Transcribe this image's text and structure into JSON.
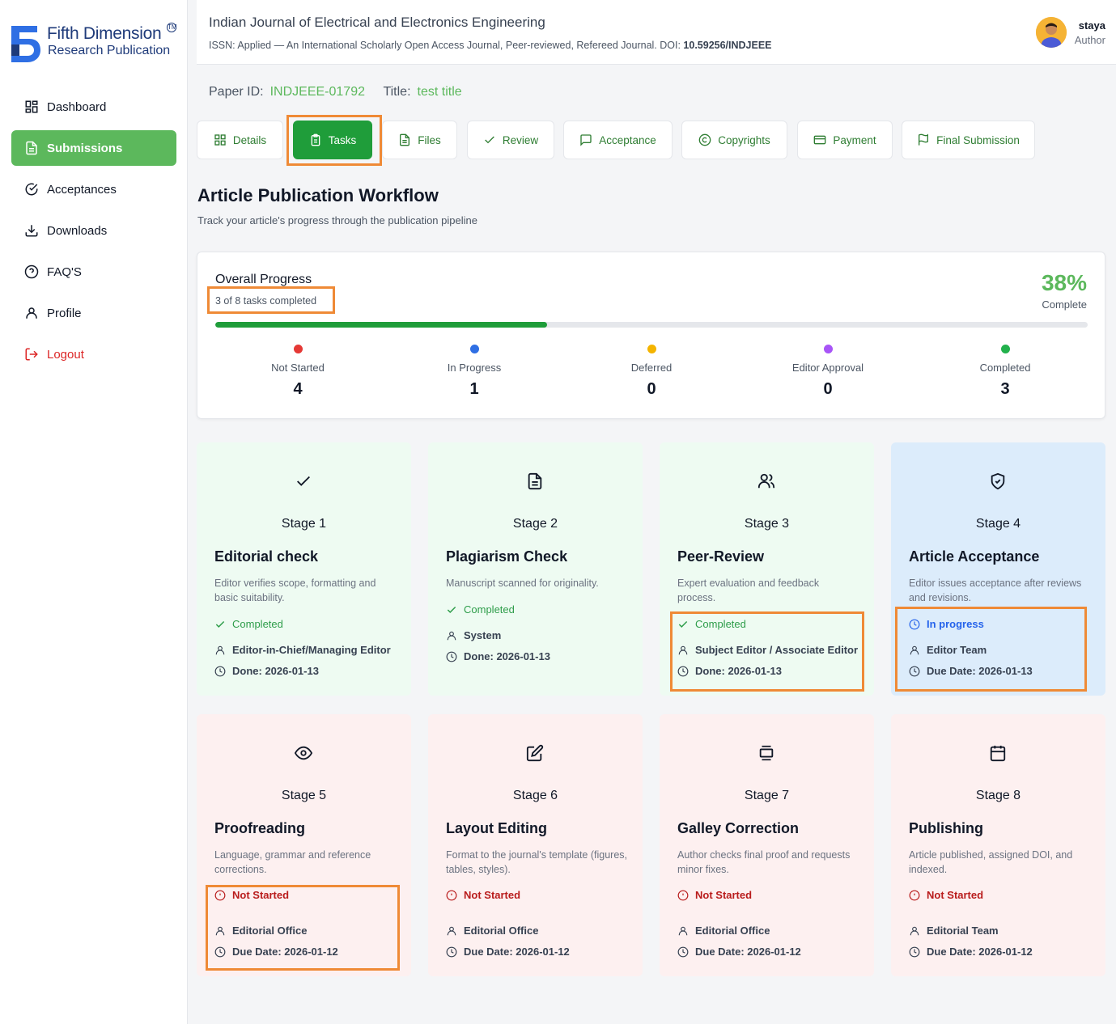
{
  "brand": {
    "line1": "Fifth Dimension",
    "line2": "Research Publication",
    "tm": "TM"
  },
  "nav": [
    {
      "label": "Dashboard",
      "icon": "grid-icon"
    },
    {
      "label": "Submissions",
      "icon": "document-icon",
      "active": true
    },
    {
      "label": "Acceptances",
      "icon": "check-circle-icon"
    },
    {
      "label": "Downloads",
      "icon": "download-icon"
    },
    {
      "label": "FAQ'S",
      "icon": "help-circle-icon"
    },
    {
      "label": "Profile",
      "icon": "user-icon"
    },
    {
      "label": "Logout",
      "icon": "logout-icon"
    }
  ],
  "header": {
    "title": "Indian Journal of Electrical and Electronics Engineering",
    "subtitle": "ISSN: Applied — An International Scholarly Open Access Journal, Peer-reviewed, Refereed Journal. DOI: ",
    "doi": "10.59256/INDJEEE",
    "user_name": "staya",
    "user_role": "Author"
  },
  "paper": {
    "id_label": "Paper ID:",
    "id": "INDJEEE-01792",
    "title_label": "Title:",
    "title": "test title"
  },
  "tabs": [
    {
      "label": "Details",
      "icon": "grid-icon"
    },
    {
      "label": "Tasks",
      "icon": "clipboard-icon",
      "active": true
    },
    {
      "label": "Files",
      "icon": "file-icon"
    },
    {
      "label": "Review",
      "icon": "check-icon"
    },
    {
      "label": "Acceptance",
      "icon": "message-icon"
    },
    {
      "label": "Copyrights",
      "icon": "copyright-icon"
    },
    {
      "label": "Payment",
      "icon": "credit-card-icon"
    },
    {
      "label": "Final Submission",
      "icon": "flag-icon"
    }
  ],
  "workflow": {
    "title": "Article Publication Workflow",
    "subtitle": "Track your article's progress through the publication pipeline"
  },
  "progress": {
    "title": "Overall Progress",
    "summary": "3 of 8 tasks completed",
    "percent": "38%",
    "percent_label": "Complete",
    "fraction": 0.38,
    "stats": [
      {
        "label": "Not Started",
        "value": "4",
        "color": "#e53935"
      },
      {
        "label": "In Progress",
        "value": "1",
        "color": "#2f6fe4"
      },
      {
        "label": "Deferred",
        "value": "0",
        "color": "#f4b400"
      },
      {
        "label": "Editor Approval",
        "value": "0",
        "color": "#a855f7"
      },
      {
        "label": "Completed",
        "value": "3",
        "color": "#22b14c"
      }
    ]
  },
  "stages": [
    {
      "stage": "Stage 1",
      "title": "Editorial check",
      "desc": "Editor verifies scope, formatting and basic suitability.",
      "status": "Completed",
      "assignee": "Editor-in-Chief/Managing Editor",
      "date": "Done: 2026-01-13",
      "icon": "check-icon"
    },
    {
      "stage": "Stage 2",
      "title": "Plagiarism Check",
      "desc": "Manuscript scanned for originality.",
      "status": "Completed",
      "assignee": "System",
      "date": "Done: 2026-01-13",
      "icon": "file-text-icon"
    },
    {
      "stage": "Stage 3",
      "title": "Peer-Review",
      "desc": "Expert evaluation and feedback process.",
      "status": "Completed",
      "assignee": "Subject Editor / Associate Editor",
      "date": "Done: 2026-01-13",
      "icon": "users-icon"
    },
    {
      "stage": "Stage 4",
      "title": "Article Acceptance",
      "desc": "Editor issues acceptance after reviews and revisions.",
      "status": "In progress",
      "assignee": "Editor Team",
      "date": "Due Date: 2026-01-13",
      "icon": "shield-check-icon"
    },
    {
      "stage": "Stage 5",
      "title": "Proofreading",
      "desc": "Language, grammar and reference corrections.",
      "status": "Not Started",
      "assignee": "Editorial Office",
      "date": "Due Date: 2026-01-12",
      "icon": "eye-icon"
    },
    {
      "stage": "Stage 6",
      "title": "Layout Editing",
      "desc": "Format to the journal's template (figures, tables, styles).",
      "status": "Not Started",
      "assignee": "Editorial Office",
      "date": "Due Date: 2026-01-12",
      "icon": "edit-icon"
    },
    {
      "stage": "Stage 7",
      "title": "Galley Correction",
      "desc": "Author checks final proof and requests minor fixes.",
      "status": "Not Started",
      "assignee": "Editorial Office",
      "date": "Due Date: 2026-01-12",
      "icon": "layers-icon"
    },
    {
      "stage": "Stage 8",
      "title": "Publishing",
      "desc": "Article published, assigned DOI, and indexed.",
      "status": "Not Started",
      "assignee": "Editorial Team",
      "date": "Due Date: 2026-01-12",
      "icon": "calendar-icon"
    }
  ]
}
